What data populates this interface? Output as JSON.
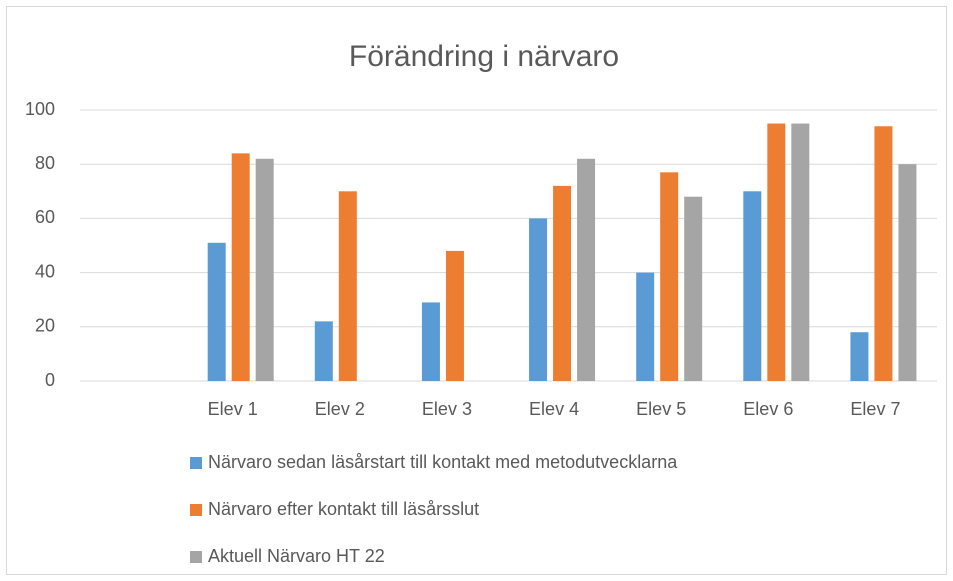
{
  "chart_data": {
    "type": "bar",
    "title": "Förändring i närvaro",
    "categories": [
      null,
      "Elev 1",
      "Elev 2",
      "Elev 3",
      "Elev 4",
      "Elev 5",
      "Elev 6",
      "Elev 7"
    ],
    "series": [
      {
        "name": "Närvaro sedan läsårstart till  kontakt med metodutvecklarna",
        "color": "#5b9bd5",
        "values": [
          null,
          51,
          22,
          29,
          60,
          40,
          70,
          18
        ]
      },
      {
        "name": "Närvaro efter kontakt till läsårsslut",
        "color": "#ed7d31",
        "values": [
          null,
          84,
          70,
          48,
          72,
          77,
          95,
          94
        ]
      },
      {
        "name": "Aktuell Närvaro HT 22",
        "color": "#a5a5a5",
        "values": [
          null,
          82,
          null,
          null,
          82,
          68,
          95,
          80
        ]
      }
    ],
    "ylim": [
      0,
      100
    ],
    "yticks": [
      0,
      20,
      40,
      60,
      80,
      100
    ],
    "grid": true,
    "legend": "bottom"
  }
}
